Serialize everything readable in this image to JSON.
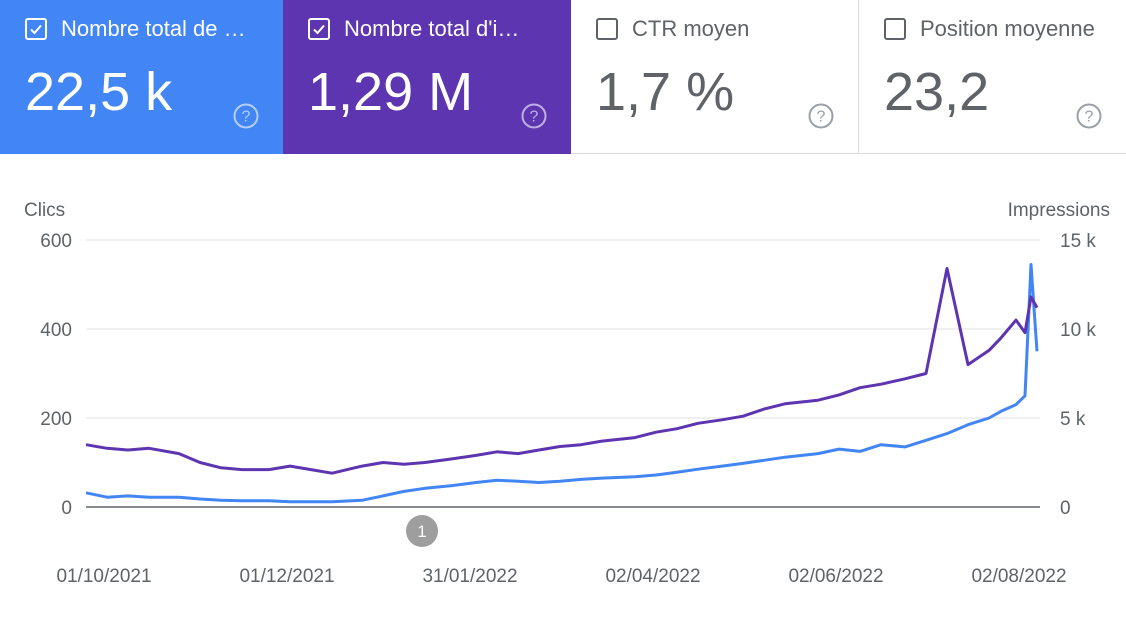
{
  "cards": [
    {
      "label": "Nombre total de …",
      "value": "22,5 k",
      "checked": true,
      "color": "#4285f4"
    },
    {
      "label": "Nombre total d'i…",
      "value": "1,29 M",
      "checked": true,
      "color": "#5e35b1"
    },
    {
      "label": "CTR moyen",
      "value": "1,7 %",
      "checked": false
    },
    {
      "label": "Position moyenne",
      "value": "23,2",
      "checked": false
    }
  ],
  "chart_data": {
    "type": "line",
    "ylabel": "Clics",
    "y2label": "Impressions",
    "ylim": [
      0,
      600
    ],
    "y2lim": [
      0,
      15000
    ],
    "y_ticks": [
      "0",
      "200",
      "400",
      "600"
    ],
    "y2_ticks": [
      "0",
      "5 k",
      "10 k",
      "15 k"
    ],
    "x_tick_labels": [
      "01/10/2021",
      "01/12/2021",
      "31/01/2022",
      "02/04/2022",
      "02/06/2022",
      "02/08/2022"
    ],
    "x_range": [
      "01/10/2021",
      "15/08/2022"
    ],
    "annotation": {
      "label": "1",
      "x": "21/01/2022"
    },
    "series": [
      {
        "axis": "left",
        "color": "#4285f4",
        "points": [
          [
            "01/10/2021",
            32
          ],
          [
            "08/10/2021",
            22
          ],
          [
            "15/10/2021",
            25
          ],
          [
            "22/10/2021",
            22
          ],
          [
            "01/11/2021",
            22
          ],
          [
            "08/11/2021",
            18
          ],
          [
            "15/11/2021",
            15
          ],
          [
            "22/11/2021",
            14
          ],
          [
            "01/12/2021",
            14
          ],
          [
            "08/12/2021",
            12
          ],
          [
            "15/12/2021",
            12
          ],
          [
            "22/12/2021",
            12
          ],
          [
            "01/01/2022",
            15
          ],
          [
            "08/01/2022",
            25
          ],
          [
            "15/01/2022",
            35
          ],
          [
            "22/01/2022",
            42
          ],
          [
            "31/01/2022",
            48
          ],
          [
            "08/02/2022",
            55
          ],
          [
            "15/02/2022",
            60
          ],
          [
            "22/02/2022",
            58
          ],
          [
            "01/03/2022",
            55
          ],
          [
            "08/03/2022",
            58
          ],
          [
            "15/03/2022",
            62
          ],
          [
            "22/03/2022",
            65
          ],
          [
            "02/04/2022",
            68
          ],
          [
            "09/04/2022",
            72
          ],
          [
            "16/04/2022",
            78
          ],
          [
            "23/04/2022",
            85
          ],
          [
            "01/05/2022",
            92
          ],
          [
            "08/05/2022",
            98
          ],
          [
            "15/05/2022",
            105
          ],
          [
            "22/05/2022",
            112
          ],
          [
            "02/06/2022",
            120
          ],
          [
            "09/06/2022",
            130
          ],
          [
            "16/06/2022",
            125
          ],
          [
            "23/06/2022",
            140
          ],
          [
            "01/07/2022",
            135
          ],
          [
            "08/07/2022",
            150
          ],
          [
            "15/07/2022",
            165
          ],
          [
            "22/07/2022",
            185
          ],
          [
            "29/07/2022",
            200
          ],
          [
            "02/08/2022",
            215
          ],
          [
            "07/08/2022",
            230
          ],
          [
            "10/08/2022",
            250
          ],
          [
            "12/08/2022",
            545
          ],
          [
            "14/08/2022",
            350
          ]
        ]
      },
      {
        "axis": "right",
        "color": "#5e35b1",
        "points": [
          [
            "01/10/2021",
            3500
          ],
          [
            "08/10/2021",
            3300
          ],
          [
            "15/10/2021",
            3200
          ],
          [
            "22/10/2021",
            3300
          ],
          [
            "01/11/2021",
            3000
          ],
          [
            "08/11/2021",
            2500
          ],
          [
            "15/11/2021",
            2200
          ],
          [
            "22/11/2021",
            2100
          ],
          [
            "01/12/2021",
            2100
          ],
          [
            "08/12/2021",
            2300
          ],
          [
            "15/12/2021",
            2100
          ],
          [
            "22/12/2021",
            1900
          ],
          [
            "01/01/2022",
            2300
          ],
          [
            "08/01/2022",
            2500
          ],
          [
            "15/01/2022",
            2400
          ],
          [
            "22/01/2022",
            2500
          ],
          [
            "31/01/2022",
            2700
          ],
          [
            "08/02/2022",
            2900
          ],
          [
            "15/02/2022",
            3100
          ],
          [
            "22/02/2022",
            3000
          ],
          [
            "01/03/2022",
            3200
          ],
          [
            "08/03/2022",
            3400
          ],
          [
            "15/03/2022",
            3500
          ],
          [
            "22/03/2022",
            3700
          ],
          [
            "02/04/2022",
            3900
          ],
          [
            "09/04/2022",
            4200
          ],
          [
            "16/04/2022",
            4400
          ],
          [
            "23/04/2022",
            4700
          ],
          [
            "01/05/2022",
            4900
          ],
          [
            "08/05/2022",
            5100
          ],
          [
            "15/05/2022",
            5500
          ],
          [
            "22/05/2022",
            5800
          ],
          [
            "02/06/2022",
            6000
          ],
          [
            "09/06/2022",
            6300
          ],
          [
            "16/06/2022",
            6700
          ],
          [
            "23/06/2022",
            6900
          ],
          [
            "01/07/2022",
            7200
          ],
          [
            "08/07/2022",
            7500
          ],
          [
            "15/07/2022",
            13400
          ],
          [
            "22/07/2022",
            8000
          ],
          [
            "29/07/2022",
            8800
          ],
          [
            "02/08/2022",
            9500
          ],
          [
            "07/08/2022",
            10500
          ],
          [
            "10/08/2022",
            9800
          ],
          [
            "12/08/2022",
            11800
          ],
          [
            "14/08/2022",
            11200
          ]
        ]
      }
    ]
  }
}
